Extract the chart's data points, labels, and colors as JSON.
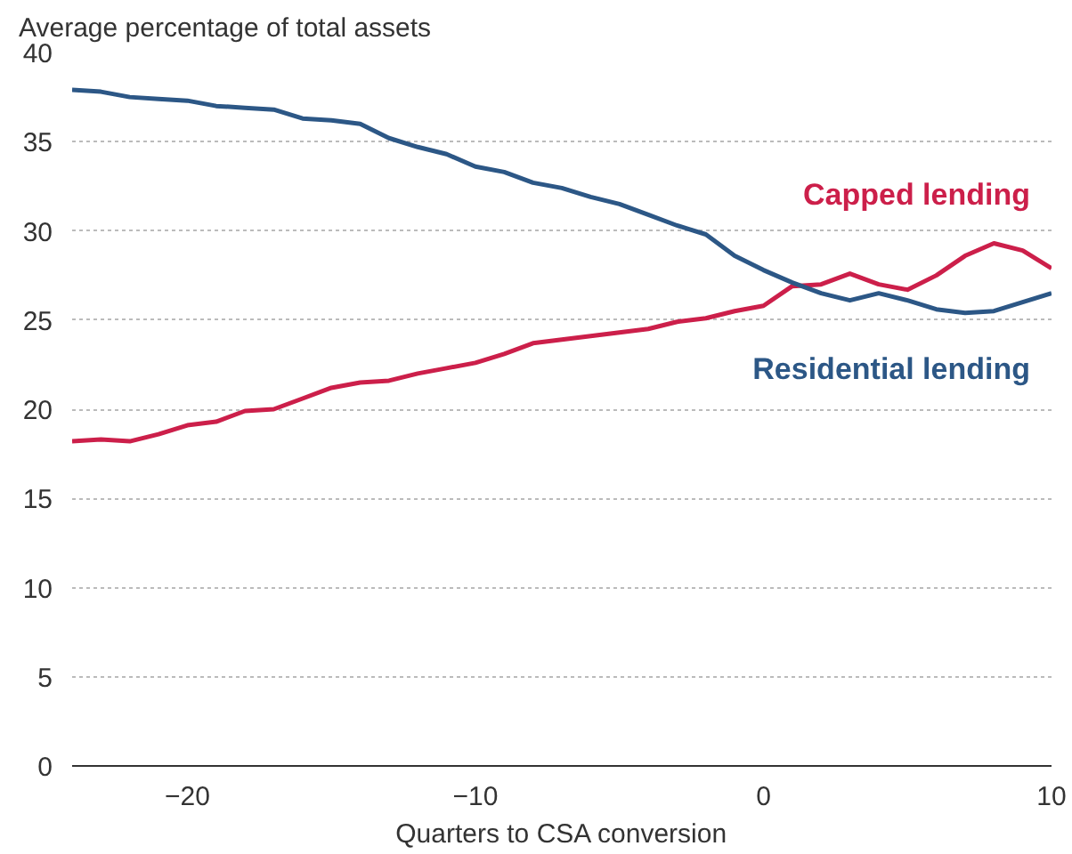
{
  "chart_data": {
    "type": "line",
    "title": "Average percentage of total assets",
    "xlabel": "Quarters to CSA conversion",
    "x": [
      -24,
      -23,
      -22,
      -21,
      -20,
      -19,
      -18,
      -17,
      -16,
      -15,
      -14,
      -13,
      -12,
      -11,
      -10,
      -9,
      -8,
      -7,
      -6,
      -5,
      -4,
      -3,
      -2,
      -1,
      0,
      1,
      2,
      3,
      4,
      5,
      6,
      7,
      8,
      9,
      10
    ],
    "series": [
      {
        "name": "Capped lending",
        "color": "#cc1f4a",
        "values": [
          18.2,
          18.3,
          18.2,
          18.6,
          19.1,
          19.3,
          19.9,
          20.0,
          20.6,
          21.2,
          21.5,
          21.6,
          22.0,
          22.3,
          22.6,
          23.1,
          23.7,
          23.9,
          24.1,
          24.3,
          24.5,
          24.9,
          25.1,
          25.5,
          25.8,
          26.9,
          27.0,
          27.6,
          27.0,
          26.7,
          27.5,
          28.6,
          29.3,
          28.9,
          27.9
        ]
      },
      {
        "name": "Residential lending",
        "color": "#2c5786",
        "values": [
          37.9,
          37.8,
          37.5,
          37.4,
          37.3,
          37.0,
          36.9,
          36.8,
          36.3,
          36.2,
          36.0,
          35.2,
          34.7,
          34.3,
          33.6,
          33.3,
          32.7,
          32.4,
          31.9,
          31.5,
          30.9,
          30.3,
          29.8,
          28.6,
          27.8,
          27.1,
          26.5,
          26.1,
          26.5,
          26.1,
          25.6,
          25.4,
          25.5,
          26.0,
          26.5
        ]
      }
    ],
    "xlim": [
      -24,
      10
    ],
    "xticks": [
      -20,
      -10,
      0,
      10
    ],
    "ylim": [
      0,
      40
    ],
    "yticks": [
      0,
      5,
      10,
      15,
      20,
      25,
      30,
      35,
      40
    ],
    "grid": "y",
    "legend": false,
    "line_style": "solid"
  }
}
